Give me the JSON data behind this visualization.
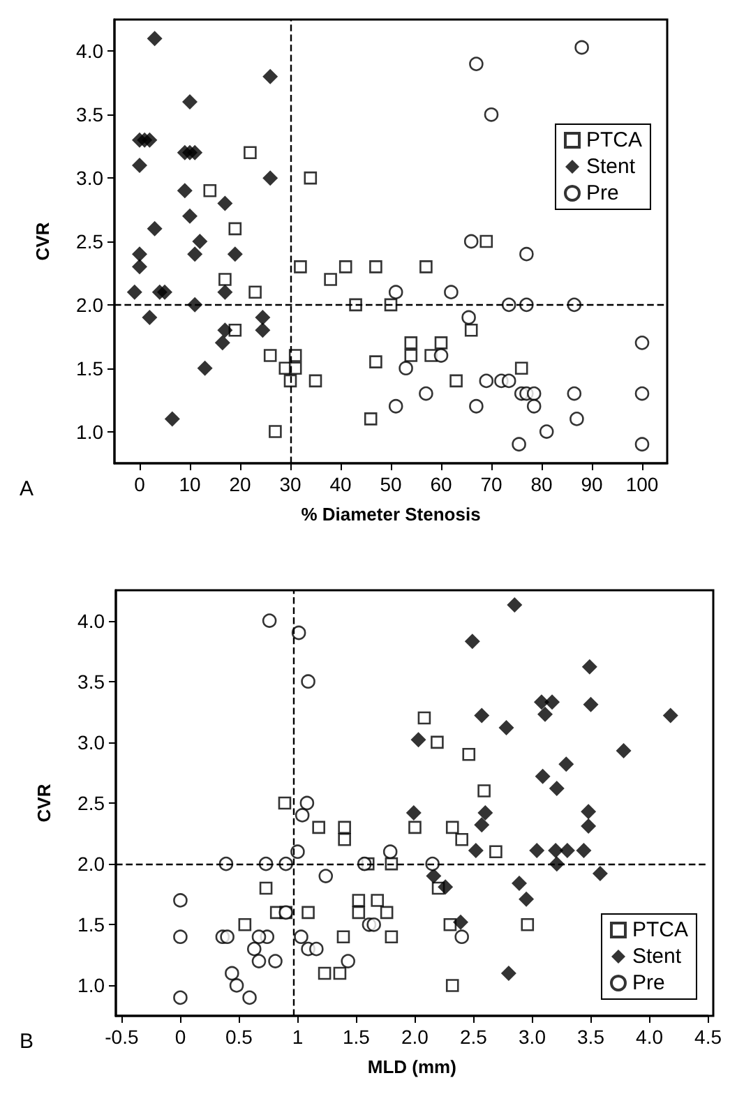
{
  "chart_data": [
    {
      "type": "scatter",
      "xlabel": "% Diameter Stenosis",
      "ylabel": "CVR",
      "annotations": [
        "A"
      ],
      "xlim": [
        -5,
        105
      ],
      "ylim": [
        0.75,
        4.25
      ],
      "xticks": [
        0,
        10,
        20,
        30,
        40,
        50,
        60,
        70,
        80,
        90,
        100
      ],
      "yticks": [
        {
          "value": 1,
          "label": "1.0"
        },
        1.5,
        {
          "value": 2,
          "label": "2.0"
        },
        2.5,
        {
          "value": 3,
          "label": "3.0"
        },
        3.5,
        {
          "value": 4,
          "label": "4.0"
        }
      ],
      "grid": false,
      "legend": "top right",
      "ref_lines": [
        {
          "axis": "x",
          "value": 30,
          "line_style": "dashed"
        },
        {
          "axis": "y",
          "value": 2,
          "line_style": "dashed"
        }
      ],
      "series": [
        {
          "name": "PTCA",
          "color": "#000000",
          "marker": "square",
          "x": [
            22,
            34,
            14,
            19,
            32,
            38,
            41,
            17,
            23,
            43,
            19,
            26,
            29,
            31,
            31,
            30,
            35,
            27,
            46,
            47,
            57,
            50,
            54,
            54,
            58,
            60,
            63,
            66,
            69,
            76,
            47
          ],
          "values": [
            3.2,
            3.0,
            2.9,
            2.6,
            2.3,
            2.2,
            2.3,
            2.2,
            2.1,
            2.0,
            1.8,
            1.6,
            1.5,
            1.6,
            1.5,
            1.4,
            1.4,
            1.0,
            1.1,
            2.3,
            2.3,
            2.0,
            1.7,
            1.6,
            1.6,
            1.7,
            1.4,
            1.8,
            2.5,
            1.5,
            1.55
          ]
        },
        {
          "name": "Stent",
          "color": "#000000",
          "marker": "diamond",
          "x": [
            3,
            26,
            10,
            0,
            1,
            2,
            0,
            9,
            10,
            11,
            9,
            26,
            17,
            10,
            3,
            12,
            11,
            19,
            0,
            0,
            -1,
            4,
            5,
            17,
            11,
            2,
            24.5,
            24.5,
            17,
            16.5,
            13,
            6.5
          ],
          "values": [
            4.1,
            3.8,
            3.6,
            3.3,
            3.3,
            3.3,
            3.1,
            3.2,
            3.2,
            3.2,
            2.9,
            3.0,
            2.8,
            2.7,
            2.6,
            2.5,
            2.4,
            2.4,
            2.4,
            2.3,
            2.1,
            2.1,
            2.1,
            2.1,
            2.0,
            1.9,
            1.9,
            1.8,
            1.8,
            1.7,
            1.5,
            1.1
          ]
        },
        {
          "name": "Pre",
          "color": "#000000",
          "marker": "circle",
          "x": [
            88,
            67,
            70,
            66,
            77,
            51,
            62,
            73.5,
            77,
            86.5,
            65.5,
            100,
            60,
            53,
            57,
            51,
            67,
            69,
            72,
            73.5,
            76,
            77,
            78.5,
            78.5,
            86.5,
            100,
            87,
            81,
            75.5,
            100
          ],
          "values": [
            4.03,
            3.9,
            3.5,
            2.5,
            2.4,
            2.1,
            2.1,
            2.0,
            2.0,
            2.0,
            1.9,
            1.7,
            1.6,
            1.5,
            1.3,
            1.2,
            1.2,
            1.4,
            1.4,
            1.4,
            1.3,
            1.3,
            1.3,
            1.2,
            1.3,
            1.3,
            1.1,
            1.0,
            0.9,
            0.9
          ]
        }
      ]
    },
    {
      "type": "scatter",
      "xlabel": "MLD (mm)",
      "ylabel": "CVR",
      "annotations": [
        "B"
      ],
      "xlim": [
        -0.55,
        4.5
      ],
      "ylim": [
        0.75,
        4.25
      ],
      "xticks": [
        -0.5,
        0,
        0.5,
        1,
        1.5,
        {
          "value": 2,
          "label": "2.0"
        },
        2.5,
        {
          "value": 3,
          "label": "3.0"
        },
        3.5,
        {
          "value": 4,
          "label": "4.0"
        },
        4.5
      ],
      "yticks": [
        {
          "value": 1,
          "label": "1.0"
        },
        1.5,
        {
          "value": 2,
          "label": "2.0"
        },
        2.5,
        {
          "value": 3,
          "label": "3.0"
        },
        3.5,
        {
          "value": 4,
          "label": "4.0"
        }
      ],
      "grid": false,
      "legend": "bottom right",
      "ref_lines": [
        {
          "axis": "x",
          "value": 0.97,
          "line_style": "dashed"
        },
        {
          "axis": "y",
          "value": 2,
          "line_style": "dashed"
        }
      ],
      "series": [
        {
          "name": "PTCA",
          "color": "#000000",
          "marker": "square",
          "x": [
            0.89,
            1.18,
            1.4,
            1.4,
            1.6,
            0.73,
            0.55,
            0.82,
            0.9,
            1.09,
            1.39,
            1.23,
            1.36,
            1.52,
            1.52,
            2.08,
            2.19,
            2.46,
            2.59,
            2.0,
            2.32,
            2.4,
            2.69,
            1.8,
            2.2,
            1.68,
            1.76,
            1.8,
            2.3,
            2.96,
            2.32
          ],
          "values": [
            2.5,
            2.3,
            2.3,
            2.2,
            2.0,
            1.8,
            1.5,
            1.6,
            1.6,
            1.6,
            1.4,
            1.1,
            1.1,
            1.7,
            1.6,
            3.2,
            3.0,
            2.9,
            2.6,
            2.3,
            2.3,
            2.2,
            2.1,
            2.0,
            1.8,
            1.7,
            1.6,
            1.4,
            1.5,
            1.5,
            1.0
          ]
        },
        {
          "name": "Stent",
          "color": "#000000",
          "marker": "diamond",
          "x": [
            2.85,
            2.49,
            3.49,
            3.08,
            3.17,
            3.11,
            3.5,
            2.57,
            2.78,
            4.18,
            2.03,
            3.78,
            3.29,
            3.09,
            3.21,
            2.6,
            2.57,
            1.99,
            3.48,
            3.48,
            2.52,
            3.04,
            3.2,
            3.3,
            3.44,
            3.21,
            3.58,
            2.16,
            2.26,
            2.89,
            2.95,
            2.39,
            2.8
          ],
          "values": [
            4.13,
            3.83,
            3.62,
            3.33,
            3.33,
            3.23,
            3.31,
            3.22,
            3.12,
            3.22,
            3.02,
            2.93,
            2.82,
            2.72,
            2.62,
            2.42,
            2.32,
            2.42,
            2.43,
            2.31,
            2.11,
            2.11,
            2.11,
            2.11,
            2.11,
            2.0,
            1.92,
            1.9,
            1.81,
            1.84,
            1.71,
            1.52,
            1.1
          ]
        },
        {
          "name": "Pre",
          "color": "#000000",
          "marker": "circle",
          "x": [
            0.76,
            1.01,
            1.09,
            0,
            0,
            0,
            0.39,
            0.73,
            0.9,
            1.0,
            1.08,
            1.04,
            1.24,
            0.9,
            0.36,
            0.4,
            0.74,
            0.67,
            0.63,
            0.67,
            0.81,
            0.44,
            0.48,
            0.59,
            1.03,
            1.09,
            1.16,
            1.43,
            1.61,
            1.79,
            1.57,
            2.15,
            1.65,
            2.4
          ],
          "values": [
            4.0,
            3.9,
            3.5,
            1.7,
            1.4,
            0.9,
            2.0,
            2.0,
            2.0,
            2.1,
            2.5,
            2.4,
            1.9,
            1.6,
            1.4,
            1.4,
            1.4,
            1.4,
            1.3,
            1.2,
            1.2,
            1.1,
            1.0,
            0.9,
            1.4,
            1.3,
            1.3,
            1.2,
            1.5,
            2.1,
            2.0,
            2.0,
            1.5,
            1.4
          ]
        }
      ]
    }
  ]
}
